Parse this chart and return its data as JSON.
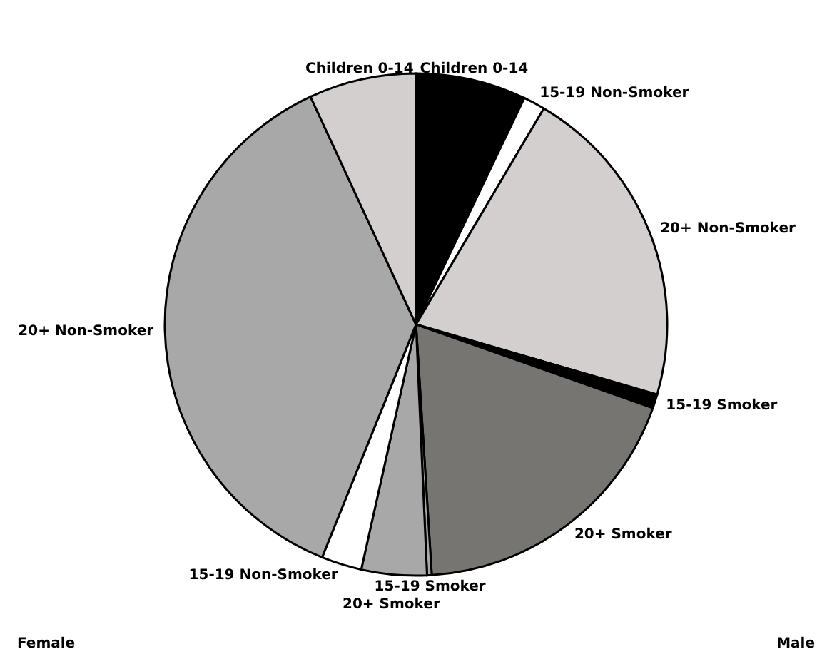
{
  "chart_data": {
    "type": "pie",
    "categories": [
      "Children 0-14",
      "15-19 Non-Smoker",
      "20+ Non-Smoker",
      "15-19 Smoker",
      "20+ Smoker",
      "15-19 Smoker",
      "20+ Smoker",
      "15-19 Non-Smoker",
      "20+ Non-Smoker",
      "Children 0-14"
    ],
    "values": [
      7.1,
      1.4,
      21.0,
      0.9,
      18.6,
      0.3,
      4.2,
      2.6,
      37.0,
      6.9
    ],
    "colors": [
      "#000000",
      "#ffffff",
      "#d4cfcf",
      "#000000",
      "#777572",
      "#a8a8a8",
      "#a8a8a8",
      "#ffffff",
      "#a8a8a8",
      "#d4cfcf"
    ],
    "annotations": [
      "Female",
      "Male"
    ]
  }
}
